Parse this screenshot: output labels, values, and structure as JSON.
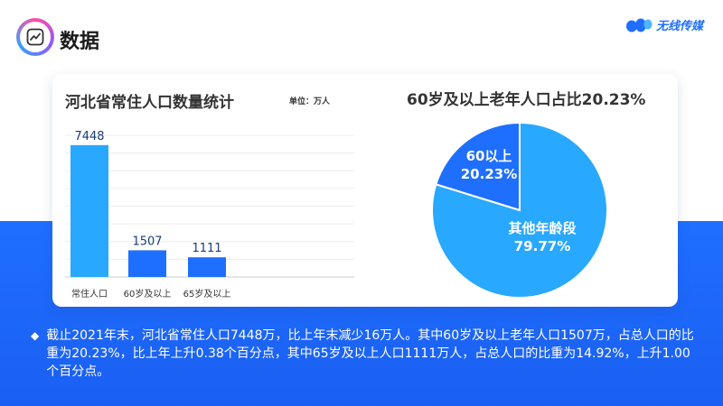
{
  "header": {
    "title": "数据",
    "icon": "chart-trend-icon"
  },
  "brand": {
    "name": "无线传媒",
    "logo": "brand-logo-icon"
  },
  "bar_panel": {
    "title": "河北省常住人口数量统计",
    "unit": "单位：万人"
  },
  "pie_panel": {
    "title": "60岁及以上老年人口占比20.23%"
  },
  "chart_data": [
    {
      "type": "bar",
      "categories": [
        "常住人口",
        "60岁及以上",
        "65岁及以上"
      ],
      "values": [
        7448,
        1507,
        1111
      ],
      "title": "河北省常住人口数量统计",
      "unit": "单位：万人",
      "colors": [
        "#29a8ff",
        "#1f6fff",
        "#1f6fff"
      ],
      "ylim": [
        0,
        8000
      ],
      "grid": true
    },
    {
      "type": "pie",
      "title": "60岁及以上老年人口占比20.23%",
      "slices": [
        {
          "label": "60以上",
          "value": 20.23,
          "value_label": "20.23%",
          "color": "#1f6fff"
        },
        {
          "label": "其他年龄段",
          "value": 79.77,
          "value_label": "79.77%",
          "color": "#29a8ff"
        }
      ]
    }
  ],
  "description": {
    "bullet": "diamond-icon",
    "text": "截止2021年末，河北省常住人口7448万，比上年末减少16万人。其中60岁及以上老年人口1507万，占总人口的比重为20.23%，比上年上升0.38个百分点，其中65岁及以上人口1111万人，占总人口的比重为14.92%，上升1.00个百分点。"
  }
}
